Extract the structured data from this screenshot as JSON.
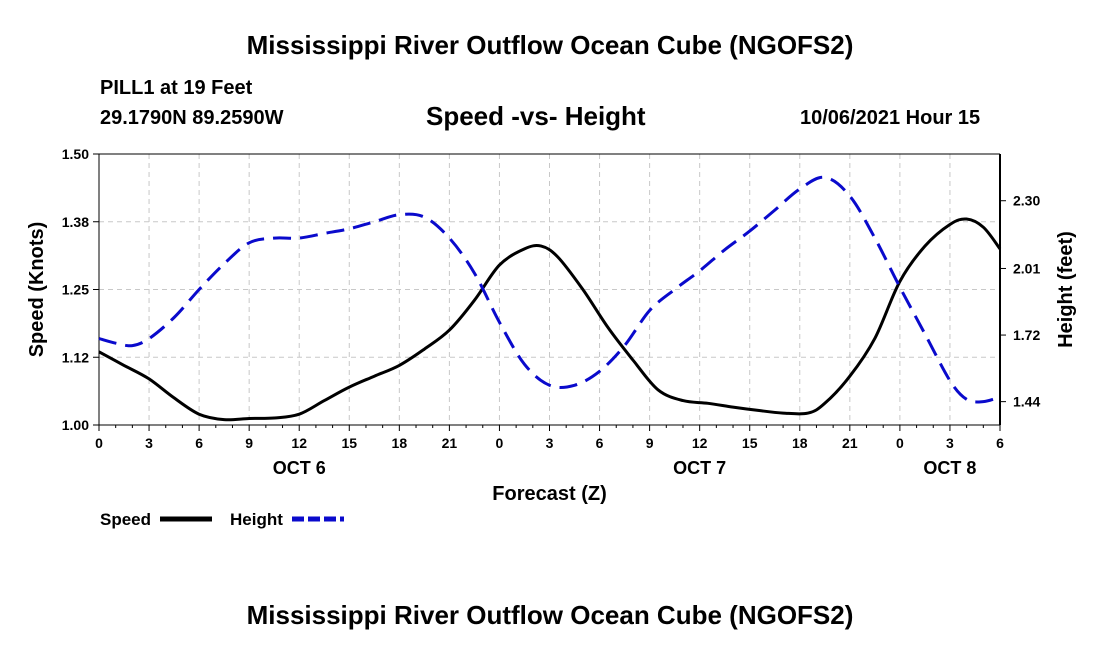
{
  "page": {
    "top_title": "Mississippi River Outflow Ocean Cube (NGOFS2)",
    "bottom_title": "Mississippi River Outflow Ocean Cube (NGOFS2)",
    "station": "PILL1 at 19 Feet",
    "coords": "29.1790N  89.2590W",
    "chart_title": "Speed -vs- Height",
    "date": "10/06/2021 Hour 15"
  },
  "chart_data": {
    "type": "line",
    "xlabel": "Forecast (Z)",
    "ylabel": "Speed (Knots)",
    "ylabel_right": "Height (feet)",
    "xlim": [
      0,
      54
    ],
    "ylim": [
      1.0,
      1.5
    ],
    "ylim_right": [
      1.34,
      2.5
    ],
    "x_ticks": [
      0,
      3,
      6,
      9,
      12,
      15,
      18,
      21,
      24,
      27,
      30,
      33,
      36,
      39,
      42,
      45,
      48,
      51,
      54
    ],
    "x_tick_labels": [
      "0",
      "3",
      "6",
      "9",
      "12",
      "15",
      "18",
      "21",
      "0",
      "3",
      "6",
      "9",
      "12",
      "15",
      "18",
      "21",
      "0",
      "3",
      "6"
    ],
    "y_ticks": [
      1.0,
      1.125,
      1.25,
      1.375,
      1.5
    ],
    "y_tick_labels": [
      "1.00",
      "1.12",
      "1.25",
      "1.38",
      "1.50"
    ],
    "y_right_ticks": [
      1.44,
      1.725,
      2.01,
      2.3
    ],
    "y_right_tick_labels": [
      "1.44",
      "1.72",
      "2.01",
      "2.30"
    ],
    "day_labels": [
      {
        "x": 12,
        "label": "OCT 6"
      },
      {
        "x": 36,
        "label": "OCT 7"
      },
      {
        "x": 51,
        "label": "OCT 8"
      }
    ],
    "grid": true,
    "series": [
      {
        "name": "Speed",
        "color": "#000000",
        "axis": "left",
        "dash": "solid",
        "x": [
          0,
          1.5,
          3,
          4.5,
          6,
          7.5,
          9,
          10.5,
          12,
          13.5,
          15,
          16.5,
          18,
          19.5,
          21,
          22.5,
          24,
          25.5,
          26.5,
          27.5,
          29,
          30.5,
          32,
          33.5,
          35,
          36.5,
          38,
          39.5,
          41,
          42.5,
          43.5,
          45,
          46.5,
          48,
          49.5,
          51,
          52,
          53,
          54
        ],
        "y": [
          1.135,
          1.11,
          1.085,
          1.05,
          1.02,
          1.01,
          1.012,
          1.013,
          1.02,
          1.045,
          1.07,
          1.09,
          1.11,
          1.14,
          1.175,
          1.23,
          1.295,
          1.325,
          1.33,
          1.31,
          1.25,
          1.18,
          1.12,
          1.065,
          1.045,
          1.04,
          1.033,
          1.027,
          1.022,
          1.022,
          1.04,
          1.09,
          1.16,
          1.265,
          1.33,
          1.37,
          1.38,
          1.365,
          1.325
        ]
      },
      {
        "name": "Height",
        "color": "#0a0acc",
        "axis": "right",
        "dash": "dashed",
        "x": [
          0,
          1,
          2,
          3,
          4.5,
          6,
          7.5,
          9,
          10.5,
          12,
          13.5,
          15,
          16.5,
          18,
          19.5,
          21,
          22.5,
          24,
          25.5,
          27,
          28.5,
          30,
          31.5,
          33,
          34.5,
          36,
          37.5,
          39,
          40.5,
          42,
          43.5,
          45,
          46.5,
          48,
          49.5,
          51,
          52,
          53,
          54
        ],
        "y": [
          1.71,
          1.69,
          1.68,
          1.71,
          1.8,
          1.92,
          2.03,
          2.12,
          2.14,
          2.14,
          2.16,
          2.18,
          2.21,
          2.24,
          2.23,
          2.14,
          1.99,
          1.78,
          1.6,
          1.51,
          1.51,
          1.57,
          1.68,
          1.83,
          1.92,
          2.0,
          2.09,
          2.17,
          2.26,
          2.35,
          2.4,
          2.32,
          2.14,
          1.93,
          1.73,
          1.53,
          1.45,
          1.44,
          1.46
        ]
      }
    ],
    "legend": [
      "Speed",
      "Height"
    ],
    "legend_position": "bottom-left"
  }
}
